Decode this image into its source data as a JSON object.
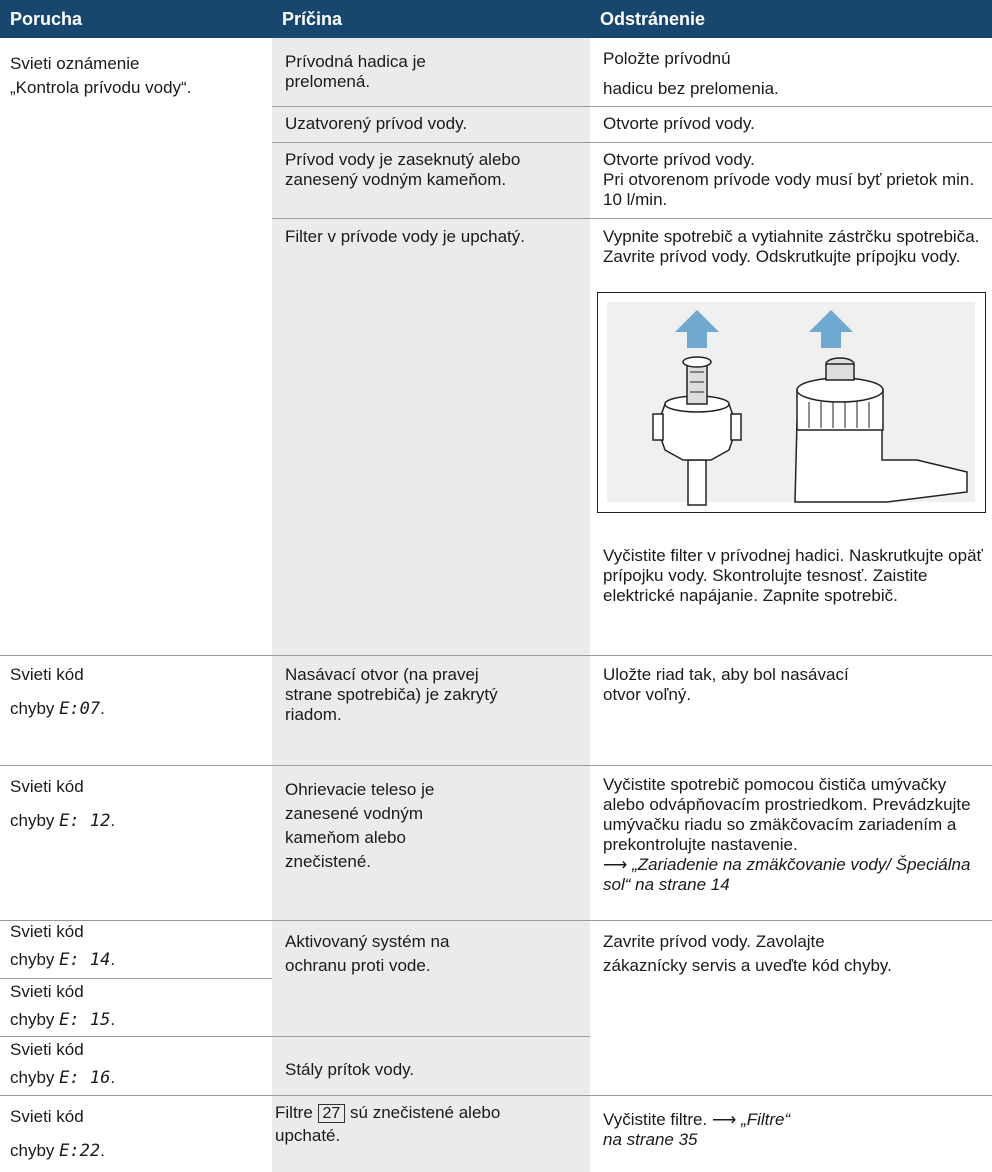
{
  "table": {
    "header": [
      "Porucha",
      "Príčina",
      "Odstránenie"
    ],
    "water_supply": {
      "symptom": "Svieti oznámenie „Kontrola prívodu vody“.",
      "items": [
        {
          "cause": "Prívodná hadica je prelomená.",
          "remedy": "Položte prívodnú hadicu bez prelomenia."
        },
        {
          "cause": "Uzatvorený prívod vody.",
          "remedy": "Otvorte prívod vody."
        },
        {
          "cause": "Prívod vody je zaseknutý alebo zanesený vodným kameňom.",
          "remedy": "Otvorte prívod vody.",
          "remedy_2": "Pri otvorenom prívode vody musí byť prietok min. 10 l/min."
        },
        {
          "cause": "Filter v prívode vody je upchatý.",
          "remedy": "Vypnite spotrebič a vytiahnite zástrčku spotrebiča. Zavrite prívod vody. Odskrutkujte prípojku vody.",
          "remedy_2": "Vyčistite filter v prívodnej hadici. Naskrutkujte opäť prípojku vody. Skontrolujte tesnosť. Zaistite elektrické napájanie. Zapnite spotrebič."
        }
      ]
    },
    "errors": [
      {
        "label": "Svieti kód",
        "label_2": "chyby",
        "code": "E:07",
        "end": ".",
        "cause": "Nasávací otvor (na pravej strane spotrebiča) je zakrytý riadom.",
        "remedy": "Uložte riad tak, aby bol nasávací otvor voľný."
      },
      {
        "label": "Svieti kód",
        "label_2": "chyby",
        "code": "E: 12",
        "end": ".",
        "cause": "Ohrievacie teleso je zanesené vodným kameňom alebo znečistené.",
        "remedy": "Vyčistite spotrebič pomocou čističa umývačky alebo odvápňovacím prostriedkom. Prevádzkujte umývačku riadu so zmäkčovacím zariadením a prekontrolujte nastavenie.",
        "arrow": "⟶",
        "link": "„Zariadenie na zmäkčovanie vody/ Špeciálna sol“",
        "page": "na strane 14"
      },
      {
        "label": "Svieti kód",
        "label_2": "chyby",
        "code": "E: 14",
        "end": "."
      },
      {
        "label": "Svieti kód",
        "label_2": "chyby",
        "code": "E: 15",
        "end": "."
      },
      {
        "label": "Svieti kód",
        "label_2": "chyby",
        "code": "E: 16",
        "end": "."
      },
      {
        "label": "Svieti kód",
        "label_2": "chyby",
        "code": "E:22",
        "end": ".",
        "cause_a": "Filtre",
        "cause_ref": "27",
        "cause_b": "sú znečistené alebo upchaté.",
        "remedy": "Vyčistite filtre.",
        "arrow": "⟶",
        "link": "„Filtre“",
        "page": "na strane 35"
      }
    ],
    "protection": {
      "cause": "Aktivovaný systém na ochranu proti vode.",
      "cause_2": "Stály prítok vody.",
      "remedy": "Zavrite prívod vody. Zavolajte zákaznícky servis a uveďte kód chyby."
    }
  }
}
